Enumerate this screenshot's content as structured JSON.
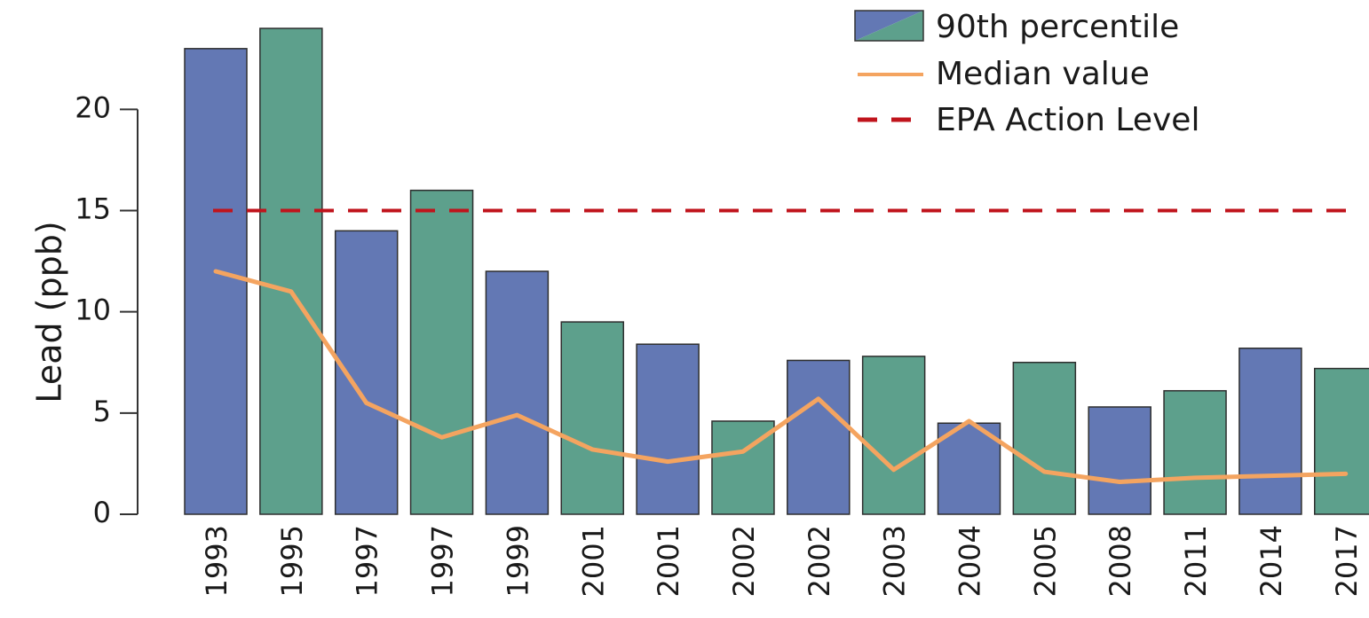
{
  "chart_data": {
    "type": "bar",
    "ylabel": "Lead (ppb)",
    "xlabel": "",
    "ylim": [
      0,
      24
    ],
    "yticks": [
      0,
      5,
      10,
      15,
      20
    ],
    "grid": false,
    "legend_position": "top-right",
    "categories": [
      "1993",
      "1995",
      "1997",
      "1997",
      "1999",
      "2001",
      "2001",
      "2002",
      "2002",
      "2003",
      "2004",
      "2005",
      "2008",
      "2011",
      "2014",
      "2017"
    ],
    "series": [
      {
        "name": "90th percentile",
        "type": "bar",
        "values": [
          23,
          24,
          14,
          16,
          12,
          9.5,
          8.4,
          4.6,
          7.6,
          7.8,
          4.5,
          7.5,
          5.3,
          6.1,
          8.2,
          7.2
        ]
      },
      {
        "name": "Median value",
        "type": "line",
        "color": "#f4a460",
        "values": [
          12,
          11,
          5.5,
          3.8,
          4.9,
          3.2,
          2.6,
          3.1,
          5.7,
          2.2,
          4.6,
          2.1,
          1.6,
          1.8,
          1.9,
          2.0
        ]
      },
      {
        "name": "EPA Action Level",
        "type": "reference-line",
        "color": "#c0141c",
        "value": 15
      }
    ],
    "bar_colors": [
      "#6378b4",
      "#5da08c",
      "#6378b4",
      "#5da08c",
      "#6378b4",
      "#5da08c",
      "#6378b4",
      "#5da08c",
      "#6378b4",
      "#5da08c",
      "#6378b4",
      "#5da08c",
      "#6378b4",
      "#5da08c",
      "#6378b4",
      "#5da08c"
    ],
    "legend": [
      {
        "label": "90th percentile",
        "swatch": "bar-split",
        "colors": [
          "#6378b4",
          "#5da08c"
        ]
      },
      {
        "label": "Median value",
        "swatch": "line",
        "color": "#f4a460"
      },
      {
        "label": "EPA Action Level",
        "swatch": "dashed-line",
        "color": "#c0141c"
      }
    ]
  }
}
